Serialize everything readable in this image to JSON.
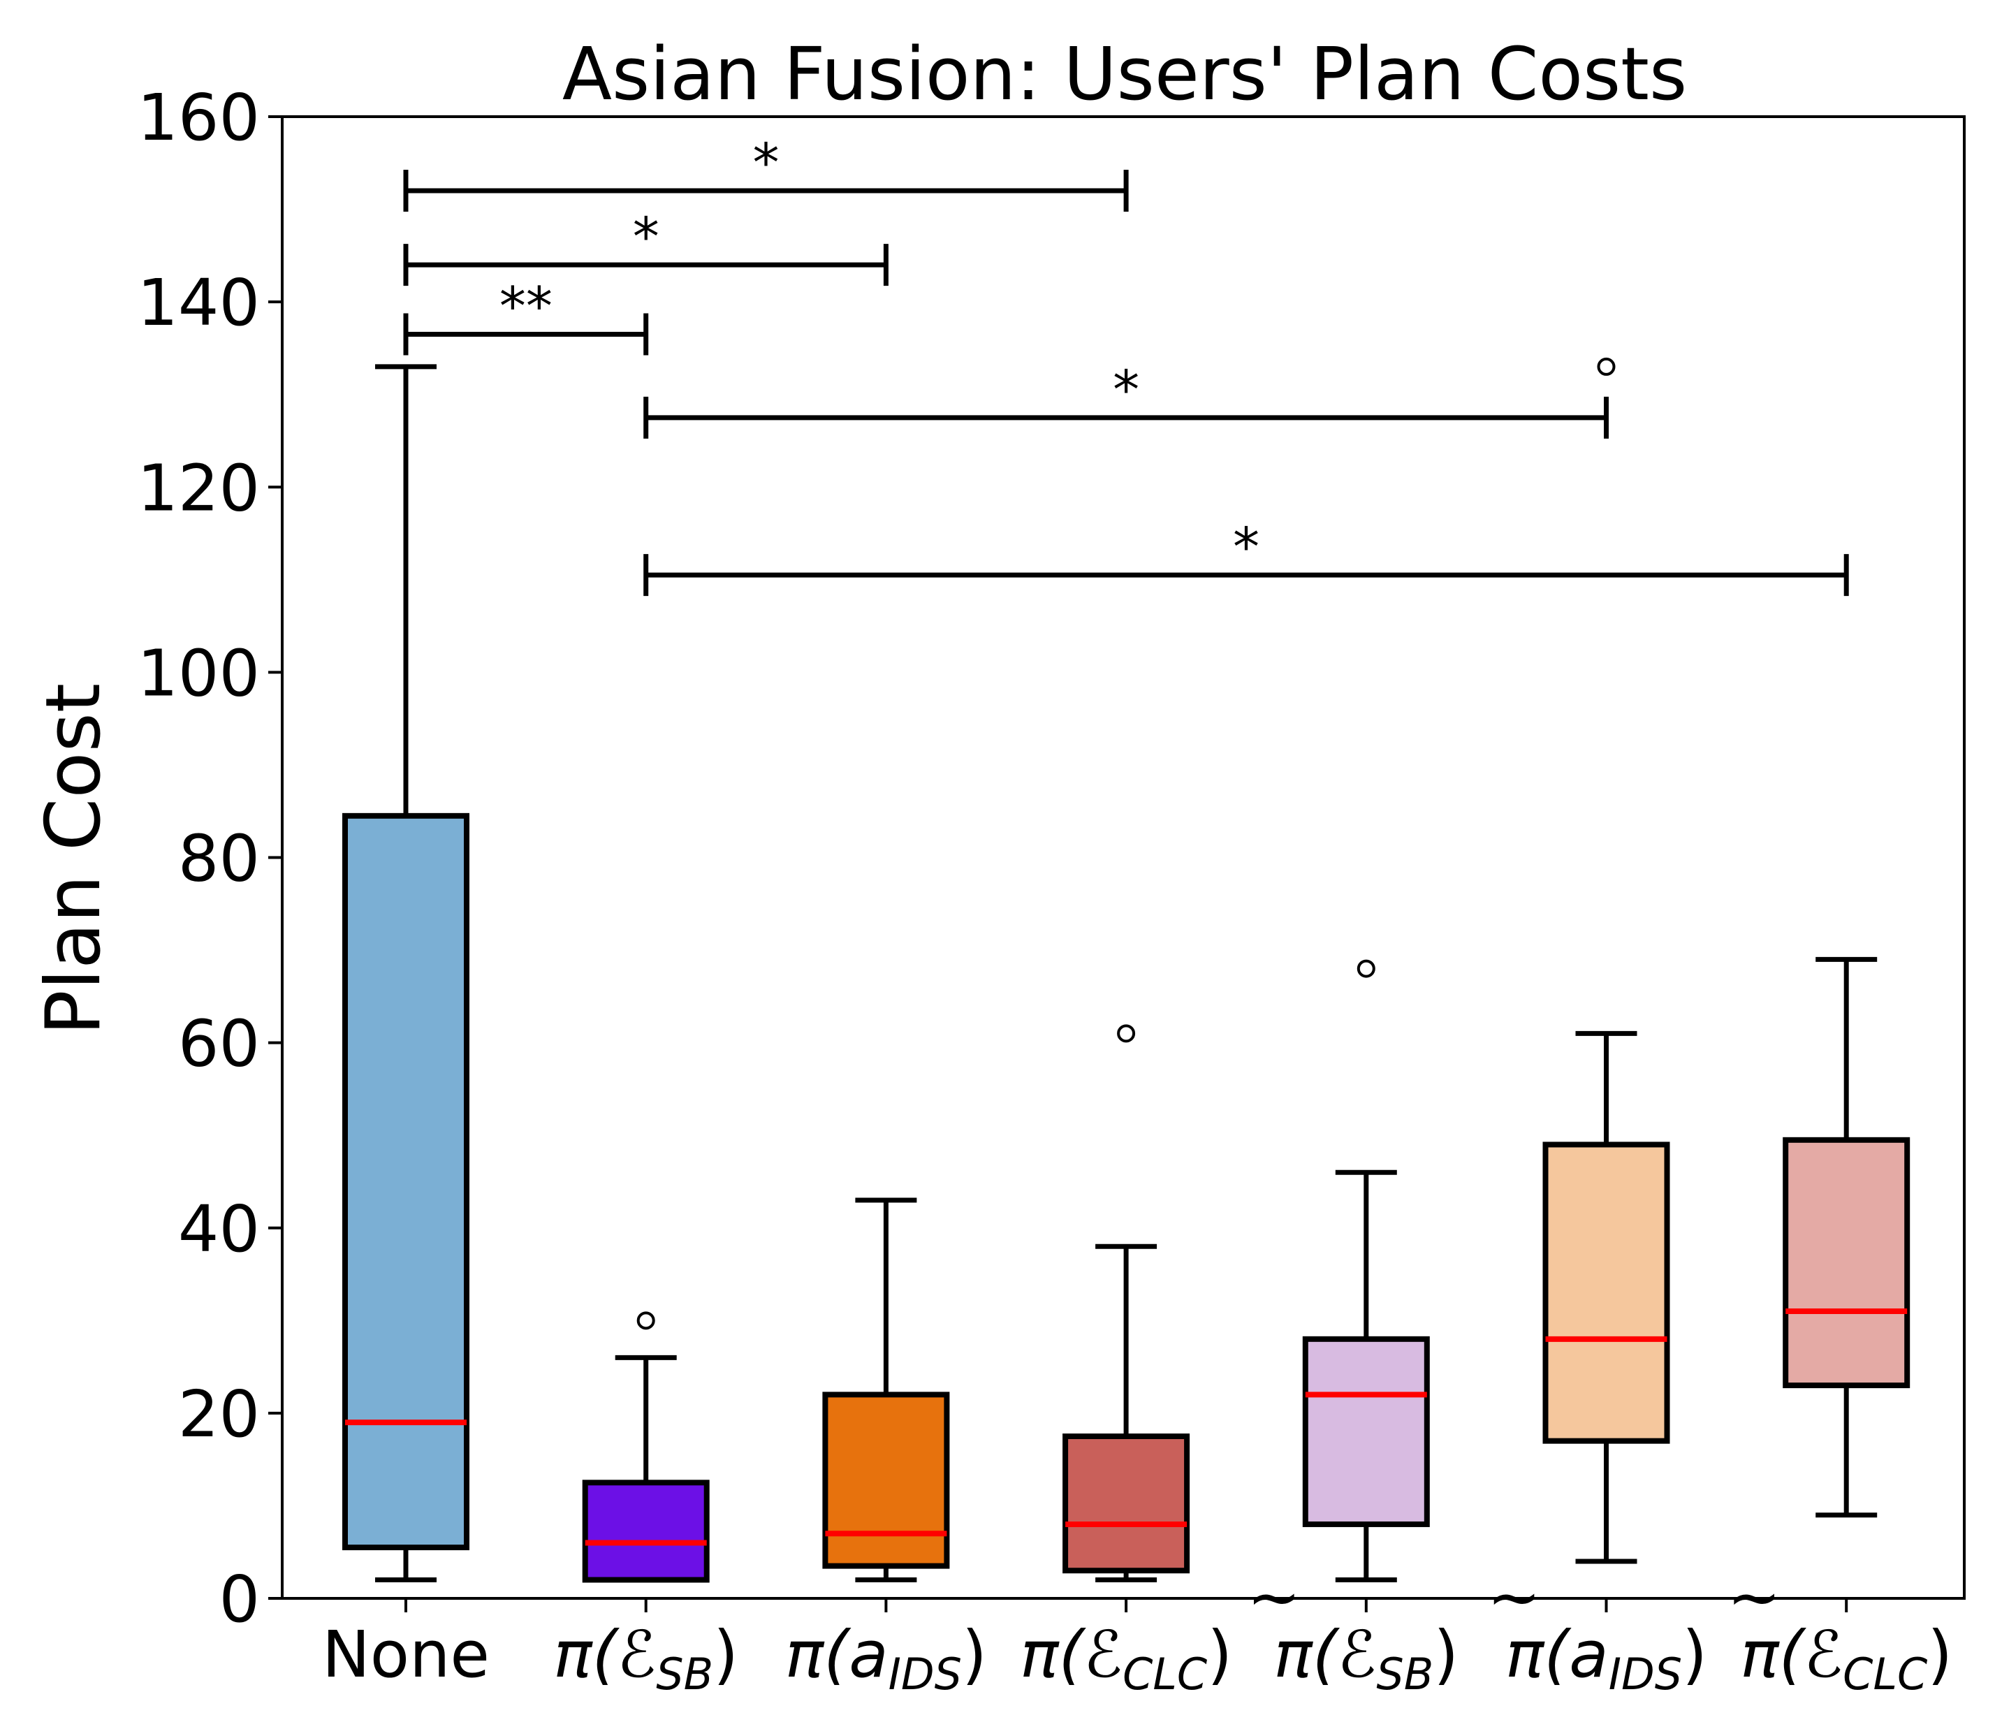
{
  "chart_data": {
    "type": "box",
    "title": "Asian Fusion: Users' Plan Costs",
    "xlabel": "",
    "ylabel": "Plan Cost",
    "ylim": [
      0,
      160
    ],
    "yticks": [
      0,
      20,
      40,
      60,
      80,
      100,
      120,
      140,
      160
    ],
    "grid": false,
    "median_color": "#ff0000",
    "categories": [
      {
        "label": "None",
        "main": "None",
        "sub": "",
        "tilde": false
      },
      {
        "label": "π(ℰSB)",
        "main": "π(ℰ",
        "sub": "SB",
        "tilde": false
      },
      {
        "label": "π(aIDS)",
        "main": "π(a",
        "sub": "IDS",
        "tilde": false
      },
      {
        "label": "π(ℰCLC)",
        "main": "π(ℰ",
        "sub": "CLC",
        "tilde": false
      },
      {
        "label": "π̃(ℰSB)",
        "main": "π(ℰ",
        "sub": "SB",
        "tilde": true
      },
      {
        "label": "π̃(aIDS)",
        "main": "π(a",
        "sub": "IDS",
        "tilde": true
      },
      {
        "label": "π̃(ℰCLC)",
        "main": "π(ℰ",
        "sub": "CLC",
        "tilde": true
      }
    ],
    "boxes": [
      {
        "category": "None",
        "whisker_low": 2,
        "q1": 5.5,
        "median": 19,
        "q3": 84.5,
        "whisker_high": 133,
        "outliers": [],
        "color": "#7bafd4"
      },
      {
        "category": "π(ℰSB)",
        "whisker_low": 2,
        "q1": 2,
        "median": 6,
        "q3": 12.5,
        "whisker_high": 26,
        "outliers": [
          30
        ],
        "color": "#6c10e6"
      },
      {
        "category": "π(aIDS)",
        "whisker_low": 2,
        "q1": 3.5,
        "median": 7,
        "q3": 22,
        "whisker_high": 43,
        "outliers": [],
        "color": "#e7720d"
      },
      {
        "category": "π(ℰCLC)",
        "whisker_low": 2,
        "q1": 3,
        "median": 8,
        "q3": 17.5,
        "whisker_high": 38,
        "outliers": [
          61
        ],
        "color": "#c9605a"
      },
      {
        "category": "π̃(ℰSB)",
        "whisker_low": 2,
        "q1": 8,
        "median": 22,
        "q3": 28,
        "whisker_high": 46,
        "outliers": [
          68
        ],
        "color": "#d8bbe1"
      },
      {
        "category": "π̃(aIDS)",
        "whisker_low": 4,
        "q1": 17,
        "median": 28,
        "q3": 49,
        "whisker_high": 61,
        "outliers": [
          133
        ],
        "color": "#f5c79d"
      },
      {
        "category": "π̃(ℰCLC)",
        "whisker_low": 9,
        "q1": 23,
        "median": 31,
        "q3": 49.5,
        "whisker_high": 69,
        "outliers": [],
        "color": "#e4aaa5"
      }
    ],
    "significance": [
      {
        "from": 0,
        "to": 3,
        "y": 152,
        "label": "*"
      },
      {
        "from": 0,
        "to": 2,
        "y": 144,
        "label": "*"
      },
      {
        "from": 0,
        "to": 1,
        "y": 136.5,
        "label": "**"
      },
      {
        "from": 1,
        "to": 5,
        "y": 127.5,
        "label": "*"
      },
      {
        "from": 1,
        "to": 6,
        "y": 110.5,
        "label": "*"
      }
    ]
  }
}
